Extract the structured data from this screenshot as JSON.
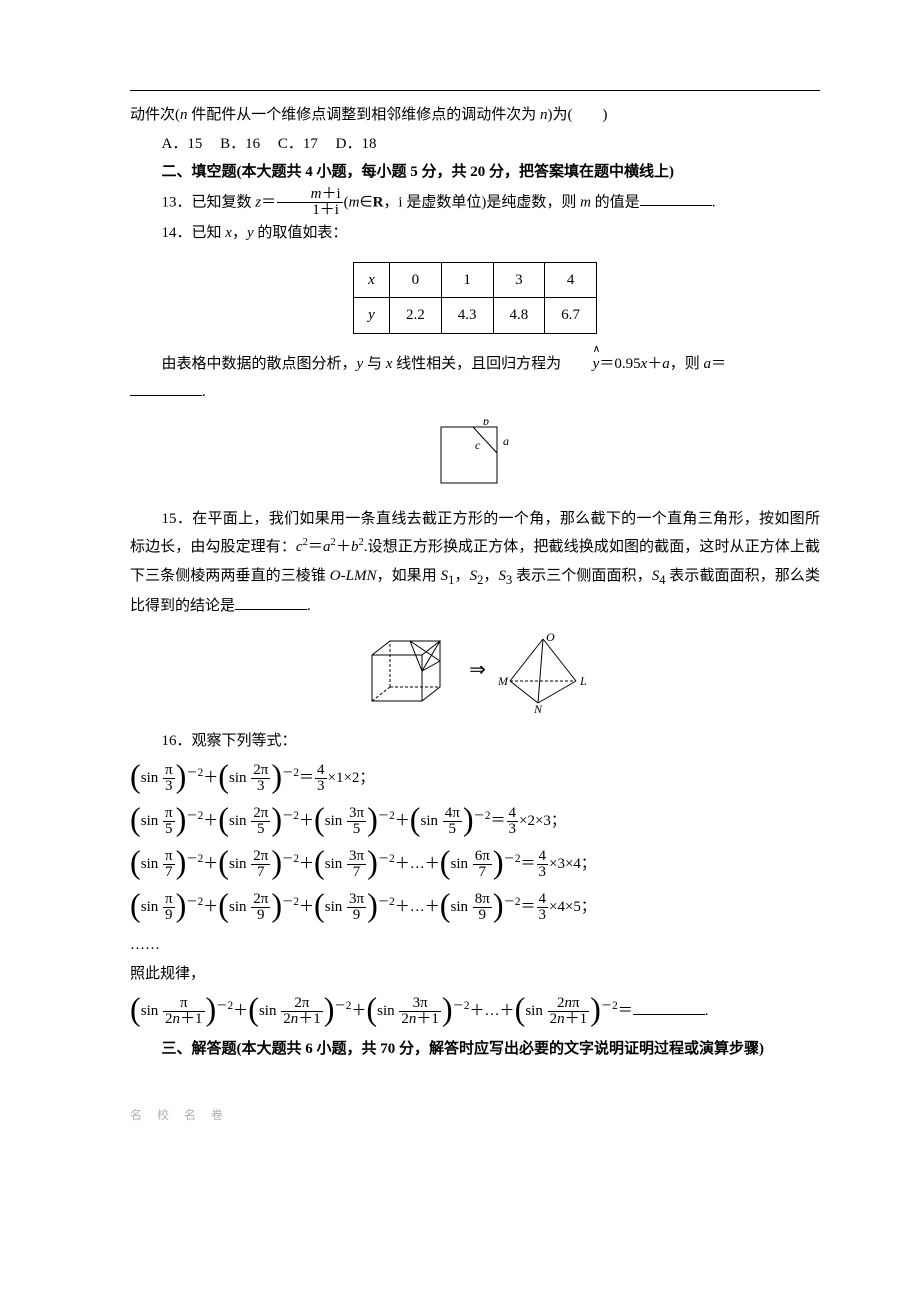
{
  "q12": {
    "prefix": "动件次(",
    "ital1": "n",
    "mid": " 件配件从一个维修点调整到相邻维修点的调动件次为 ",
    "ital2": "n",
    "suffix": ")为(　　)",
    "choices": {
      "A": "A．15",
      "B": "B．16",
      "C": "C．17",
      "D": "D．18"
    }
  },
  "section2": "二、填空题(本大题共 4 小题，每小题 5 分，共 20 分，把答案填在题中横线上)",
  "q13": {
    "pre": "13．已知复数 ",
    "z": "z",
    "eq": "＝",
    "frac_num_a": "m",
    "frac_num_b": "＋i",
    "frac_den": "1＋i",
    "paren_m": "m",
    "paren_rest": "∈",
    "R": "R",
    "tail": "，i 是虚数单位)是纯虚数，则 ",
    "m2": "m",
    "tail2": " 的值是",
    "period": "."
  },
  "q14": {
    "line": "14．已知 ",
    "x": "x",
    "comma": "，",
    "y": "y",
    "tail": " 的取值如表：",
    "table": {
      "rows": [
        {
          "label": "x",
          "cells": [
            "0",
            "1",
            "3",
            "4"
          ]
        },
        {
          "label": "y",
          "cells": [
            "2.2",
            "4.3",
            "4.8",
            "6.7"
          ]
        }
      ]
    },
    "analysis_a": "由表格中数据的散点图分析，",
    "y2": "y",
    "mid1": " 与 ",
    "x2": "x",
    "mid2": " 线性相关，且回归方程为",
    "eq_rhs_a": "＝0.95",
    "eq_rhs_x": "x",
    "eq_rhs_b": "＋",
    "eq_rhs_c": "a",
    "tail2": "，则 ",
    "a2": "a",
    "eq2": "＝",
    "period": "."
  },
  "fig14": {
    "b": "b",
    "a": "a",
    "c": "c"
  },
  "q15": {
    "t1": "15．在平面上，我们如果用一条直线去截正方形的一个角，那么截下的一个直角三角形，按如图所标边长，由勾股定理有：",
    "eq": "c",
    "sq": "2",
    "eqs": "＝",
    "a": "a",
    "plus": "＋",
    "b": "b",
    "t2": ".设想正方形换成正方体，把截线换成如图的截面，这时从正方体上截下三条侧棱两两垂直的三棱锥 ",
    "olmn": "O-LMN",
    "t3": "，如果用 ",
    "s1": "S",
    "sub1": "1",
    "c1": "，",
    "s2": "S",
    "sub2": "2",
    "c2": "，",
    "s3": "S",
    "sub3": "3",
    "t4": " 表示三个侧面面积，",
    "s4": "S",
    "sub4": "4",
    "t5": " 表示截面面积，那么类比得到的结论是",
    "period": "."
  },
  "fig15": {
    "O": "O",
    "M": "M",
    "N": "N",
    "L": "L",
    "arrow": "⇒"
  },
  "q16": {
    "head": "16．观察下列等式：",
    "pi": "π",
    "rows": [
      {
        "den": "3",
        "nums": [
          "",
          "2"
        ],
        "rhs_mul": "×1×2；",
        "ell": false,
        "last_num": "2"
      },
      {
        "den": "5",
        "nums": [
          "",
          "2",
          "3",
          "4"
        ],
        "rhs_mul": "×2×3；",
        "ell": false,
        "last_num": "4"
      },
      {
        "den": "7",
        "nums": [
          "",
          "2",
          "3"
        ],
        "rhs_mul": "×3×4；",
        "ell": true,
        "last_num": "6"
      },
      {
        "den": "9",
        "nums": [
          "",
          "2",
          "3"
        ],
        "rhs_mul": "×4×5；",
        "ell": true,
        "last_num": "8"
      }
    ],
    "dots": "……",
    "rule": "照此规律，",
    "final_den_a": "2",
    "final_den_n": "n",
    "final_den_b": "＋1",
    "final_nums": [
      "",
      "2",
      "3"
    ],
    "final_last_a": "2",
    "final_last_n": "n",
    "exp": "－2",
    "rhs_frac_num": "4",
    "rhs_frac_den": "3",
    "eq": "＝",
    "plus": "＋",
    "ell": "＋…＋",
    "sin": "sin ",
    "period": "."
  },
  "section3": "三、解答题(本大题共 6 小题，共 70 分，解答时应写出必要的文字说明证明过程或演算步骤)",
  "footer": {
    "left": "名  校  名  卷",
    "right": ""
  }
}
